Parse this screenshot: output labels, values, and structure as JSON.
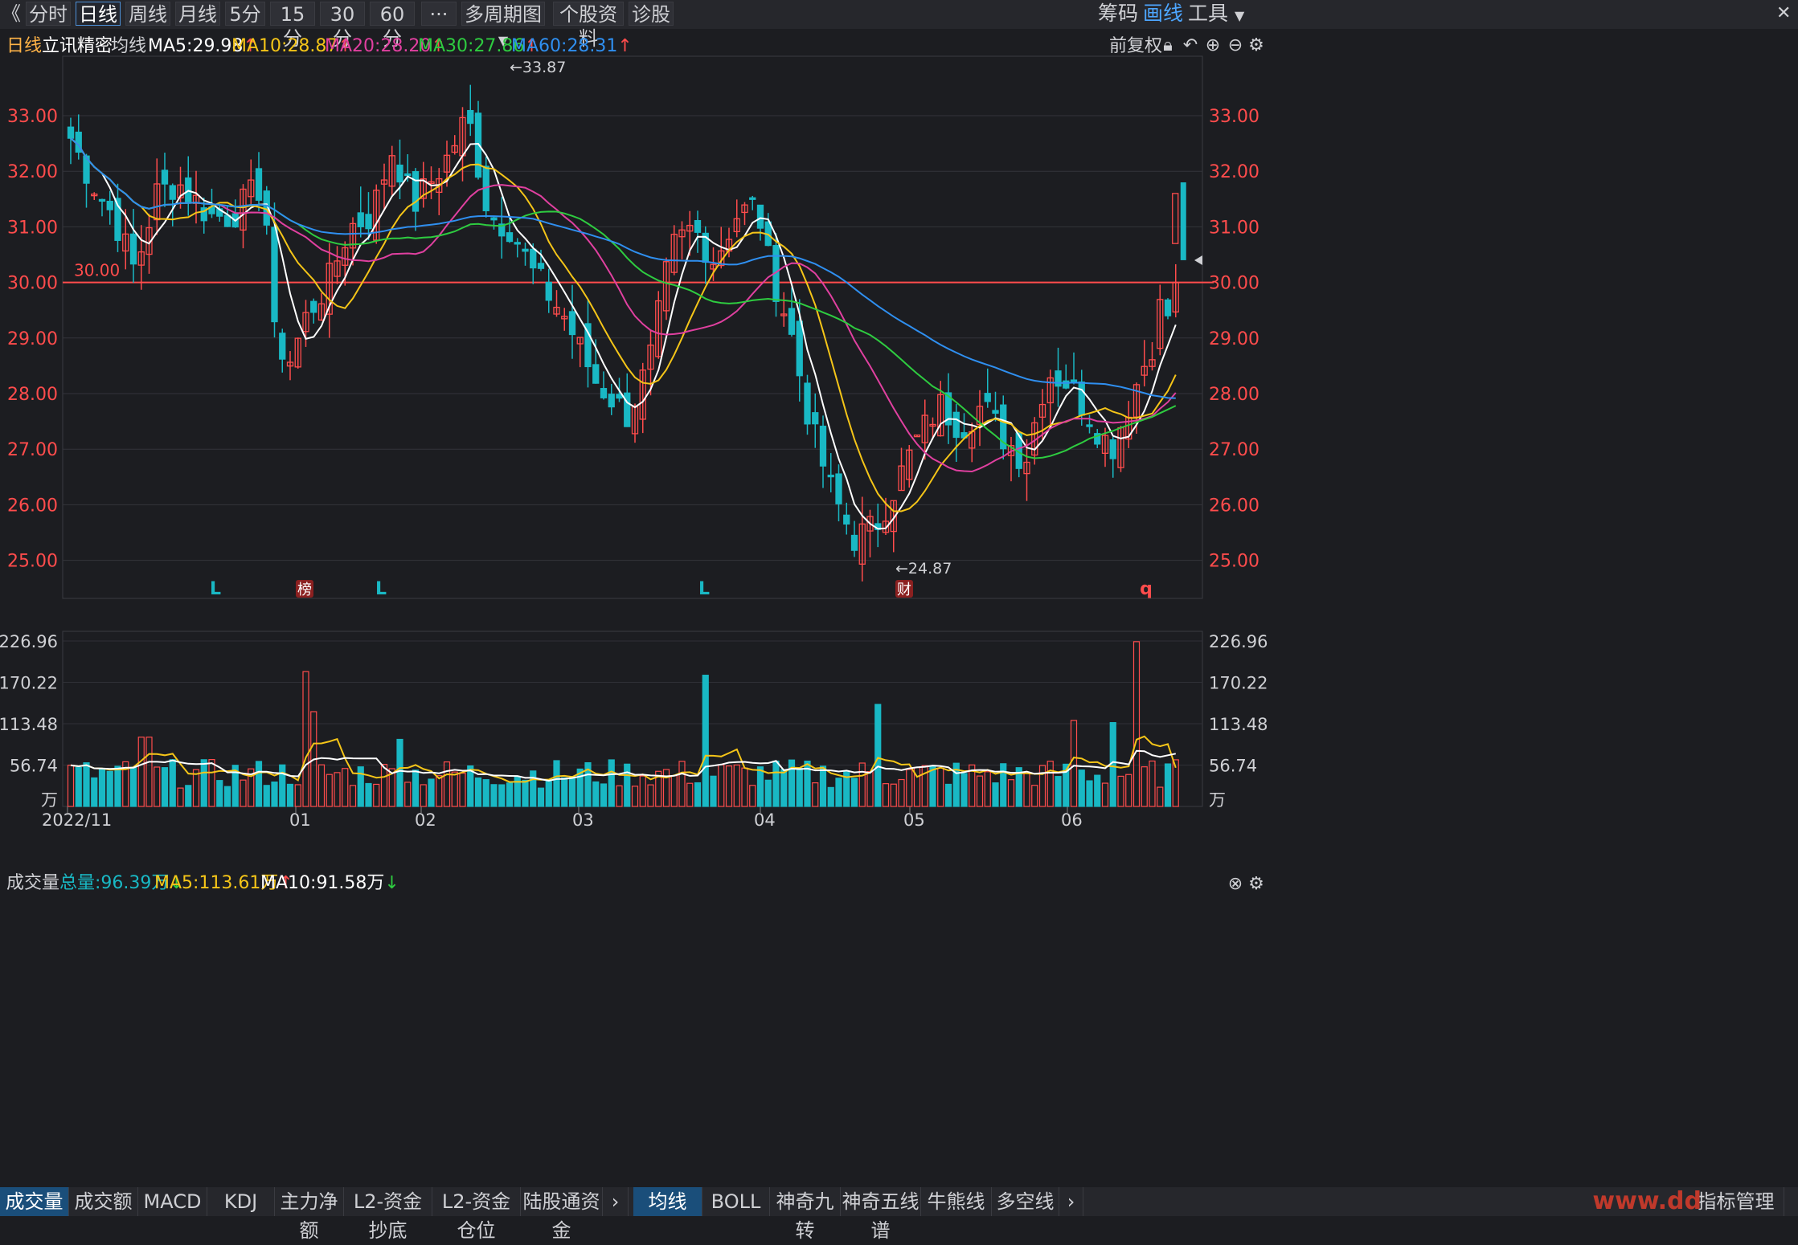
{
  "toolbar": {
    "back_icon": "double-chevron-left-icon",
    "periods": [
      "分时",
      "日线",
      "周线",
      "月线",
      "5分",
      "15分",
      "30分",
      "60分"
    ],
    "active_period": "日线",
    "more_label": "···",
    "multi_period_label": "多周期图",
    "profile_label": "个股资料",
    "diagnose_label": "诊股",
    "right": {
      "chips": "筹码",
      "draw": "画线",
      "tools": "工具"
    }
  },
  "info": {
    "period": "日线",
    "stock_name": "立讯精密",
    "ma_label": "均线",
    "ma5": "MA5:29.98",
    "ma10": "MA10:28.87",
    "ma20": "MA20:28.20",
    "ma30": "MA30:27.86",
    "ma60": "MA60:28.31",
    "adjust": "前复权"
  },
  "colors": {
    "up": "#ff4c4c",
    "down": "#19b8c4",
    "ma5": "#ffffff",
    "ma10": "#f5c518",
    "ma20": "#e040a0",
    "ma30": "#2ecc40",
    "ma60": "#2f8ff0",
    "accent": "#4da6ff"
  },
  "price_chart": {
    "y_ticks": [
      "33.00",
      "32.00",
      "31.00",
      "30.00",
      "29.00",
      "28.00",
      "27.00",
      "26.00",
      "25.00"
    ],
    "ref_line_label": "30.00",
    "high_label": "←33.87",
    "low_label": "←24.87",
    "markers": [
      {
        "text": "L",
        "type": "plain"
      },
      {
        "text": "榜",
        "type": "box"
      },
      {
        "text": "L",
        "type": "plain"
      },
      {
        "text": "L",
        "type": "plain"
      },
      {
        "text": "财",
        "type": "box"
      },
      {
        "text": "q",
        "type": "red"
      }
    ]
  },
  "volume": {
    "label": "成交量",
    "total": "总量:96.39万",
    "ma5": "MA5:113.61万",
    "ma10": "MA10:91.58万",
    "y_ticks": [
      "226.96",
      "170.22",
      "113.48",
      "56.74",
      "万"
    ]
  },
  "x_labels": [
    "2022/11",
    "01",
    "02",
    "03",
    "04",
    "05",
    "06"
  ],
  "bottom_tabs_left": [
    "成交量",
    "成交额",
    "MACD",
    "KDJ",
    "主力净额",
    "L2-资金抄底",
    "L2-资金仓位",
    "陆股通资金"
  ],
  "bottom_tabs_right": [
    "均线",
    "BOLL",
    "神奇九转",
    "神奇五线谱",
    "牛熊线",
    "多空线"
  ],
  "watermark": "www.dd",
  "indicator_mgr": "指标管理"
}
